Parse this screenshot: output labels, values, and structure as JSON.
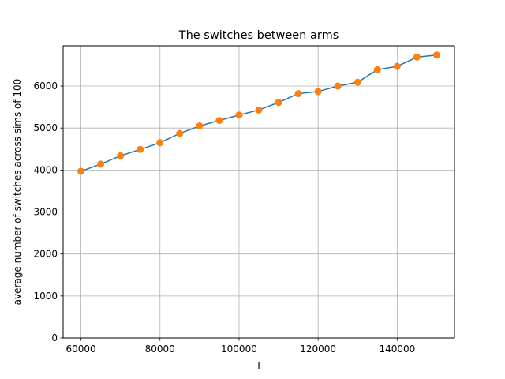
{
  "chart_data": {
    "type": "line",
    "title": "The switches between arms",
    "xlabel": "T",
    "ylabel": "average number of switches across sims of 100",
    "xlim": [
      55500,
      154500
    ],
    "ylim": [
      0,
      6960
    ],
    "xticks": [
      60000,
      80000,
      100000,
      120000,
      140000
    ],
    "yticks": [
      0,
      1000,
      2000,
      3000,
      4000,
      5000,
      6000
    ],
    "grid": true,
    "series": [
      {
        "line_color": "#1f77b4",
        "marker_color": "#ff7f0e",
        "x": [
          60000,
          65000,
          70000,
          75000,
          80000,
          85000,
          90000,
          95000,
          100000,
          105000,
          110000,
          115000,
          120000,
          125000,
          130000,
          135000,
          140000,
          145000,
          150000
        ],
        "y": [
          3970,
          4140,
          4340,
          4490,
          4650,
          4870,
          5050,
          5180,
          5310,
          5430,
          5610,
          5820,
          5870,
          6000,
          6090,
          6390,
          6470,
          6690,
          6740
        ]
      }
    ]
  }
}
